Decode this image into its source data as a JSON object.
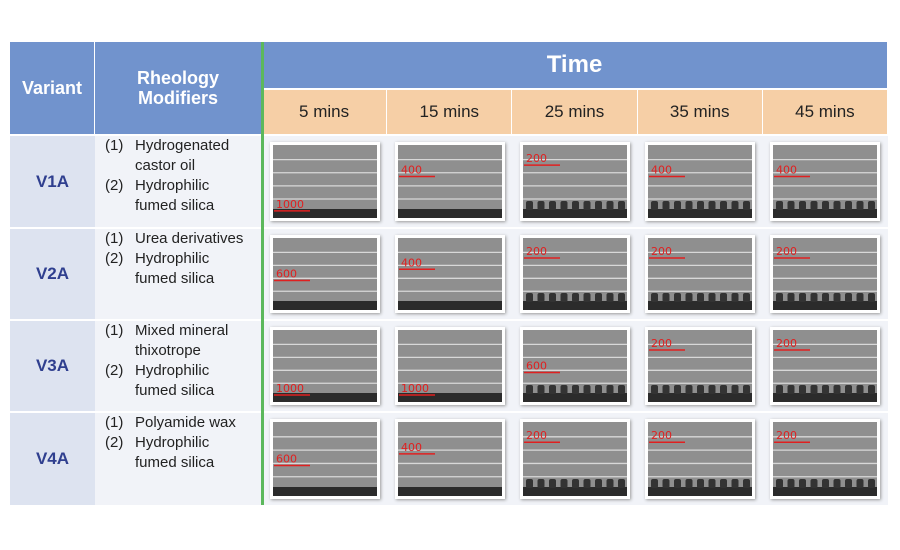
{
  "table": {
    "header": {
      "variant": "Variant",
      "modifiers": "Rheology Modifiers",
      "time": "Time",
      "times": [
        "5 mins",
        "15 mins",
        "25 mins",
        "35 mins",
        "45 mins"
      ]
    },
    "rows": [
      {
        "variant": "V1A",
        "modifiers": [
          {
            "num": "(1)",
            "text": "Hydrogenated castor oil"
          },
          {
            "num": "(2)",
            "text": "Hydrophilic fumed silica"
          }
        ],
        "labels": [
          "1000",
          "400",
          "200",
          "400",
          "400"
        ]
      },
      {
        "variant": "V2A",
        "modifiers": [
          {
            "num": "(1)",
            "text": "Urea derivatives"
          },
          {
            "num": "(2)",
            "text": "Hydrophilic fumed silica"
          }
        ],
        "labels": [
          "600",
          "400",
          "200",
          "200",
          "200"
        ]
      },
      {
        "variant": "V3A",
        "modifiers": [
          {
            "num": "(1)",
            "text": "Mixed mineral thixotrope"
          },
          {
            "num": "(2)",
            "text": "Hydrophilic fumed silica"
          }
        ],
        "labels": [
          "1000",
          "1000",
          "600",
          "200",
          "200"
        ]
      },
      {
        "variant": "V4A",
        "modifiers": [
          {
            "num": "(1)",
            "text": "Polyamide wax"
          },
          {
            "num": "(2)",
            "text": "Hydrophilic fumed silica"
          }
        ],
        "labels": [
          "600",
          "400",
          "200",
          "200",
          "200"
        ]
      }
    ]
  }
}
